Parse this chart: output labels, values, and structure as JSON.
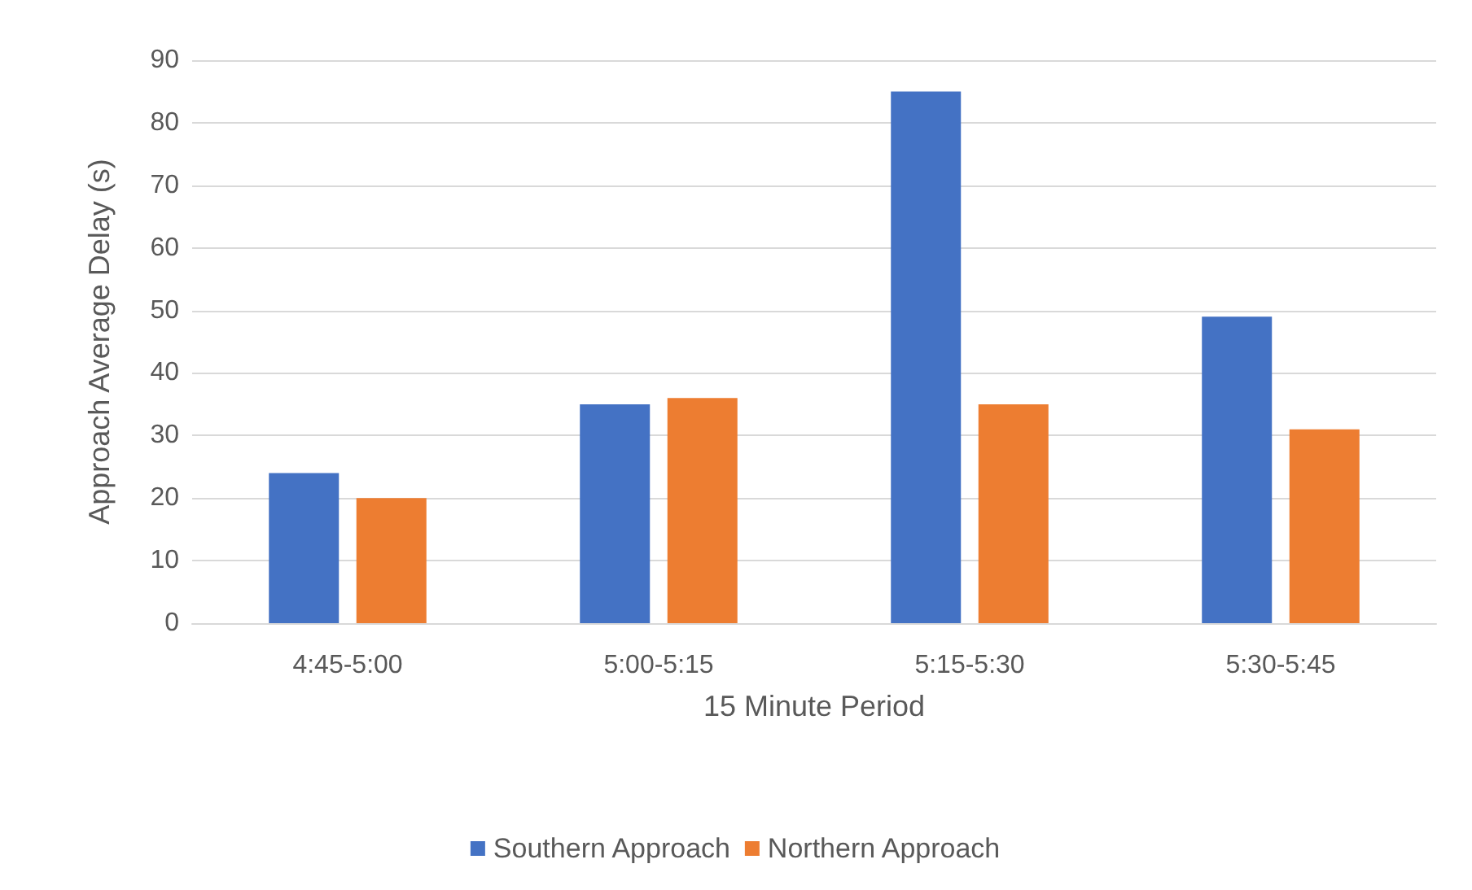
{
  "chart_data": {
    "type": "bar",
    "xlabel": "15 Minute Period",
    "ylabel": "Approach Average Delay (s)",
    "categories": [
      "4:45-5:00",
      "5:00-5:15",
      "5:15-5:30",
      "5:30-5:45"
    ],
    "series": [
      {
        "name": "Southern Approach",
        "color": "#4472c4",
        "values": [
          24,
          35,
          85,
          49
        ]
      },
      {
        "name": "Northern Approach",
        "color": "#ed7d31",
        "values": [
          20,
          36,
          35,
          31
        ]
      }
    ],
    "ylim": [
      0,
      90
    ],
    "yticks": [
      0,
      10,
      20,
      30,
      40,
      50,
      60,
      70,
      80,
      90
    ],
    "grid": "y",
    "legend": "bottom"
  }
}
